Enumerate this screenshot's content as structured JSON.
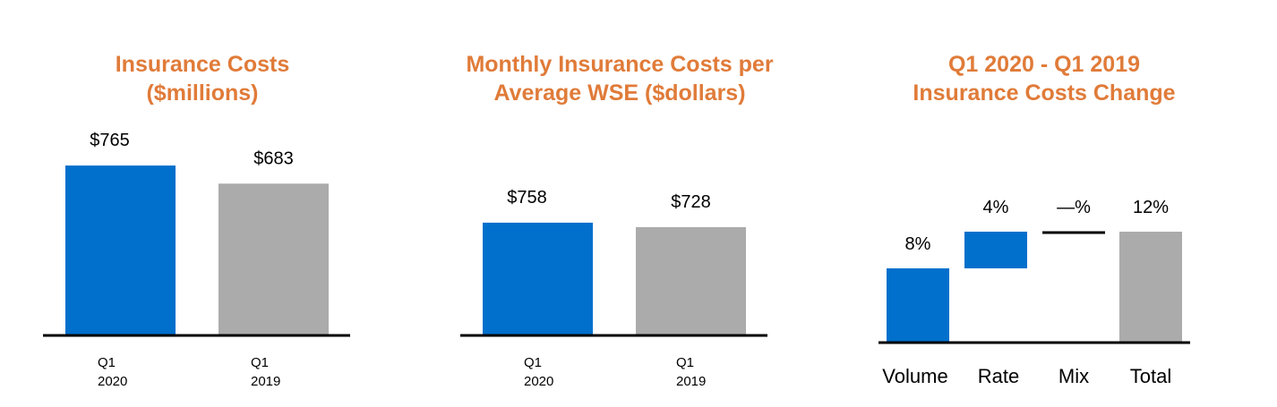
{
  "colors": {
    "title": "#E07B39",
    "current": "#0070CC",
    "prior": "#ABABAB",
    "axis": "#000000"
  },
  "chart_data": [
    {
      "type": "bar",
      "title": [
        "Insurance Costs",
        "($millions)"
      ],
      "categories": [
        [
          "Q1",
          "2020"
        ],
        [
          "Q1",
          "2019"
        ]
      ],
      "values": [
        765,
        683
      ],
      "data_labels": [
        "$765",
        "$683"
      ],
      "ylim": [
        0,
        1000
      ],
      "grid": false
    },
    {
      "type": "bar",
      "title": [
        "Monthly Insurance Costs per",
        "Average WSE ($dollars)"
      ],
      "categories": [
        [
          "Q1",
          "2020"
        ],
        [
          "Q1",
          "2019"
        ]
      ],
      "values": [
        758,
        728
      ],
      "data_labels": [
        "$758",
        "$728"
      ],
      "ylim": [
        0,
        1000
      ],
      "grid": false
    },
    {
      "type": "bar",
      "subtype": "waterfall",
      "title": [
        "Q1 2020 - Q1 2019",
        "Insurance Costs Change"
      ],
      "categories": [
        "Volume",
        "Rate",
        "Mix",
        "Total"
      ],
      "values": [
        8,
        4,
        0,
        12
      ],
      "data_labels": [
        "8%",
        "4%",
        "—%",
        "12%"
      ],
      "ylim": [
        0,
        12
      ],
      "grid": false
    }
  ]
}
